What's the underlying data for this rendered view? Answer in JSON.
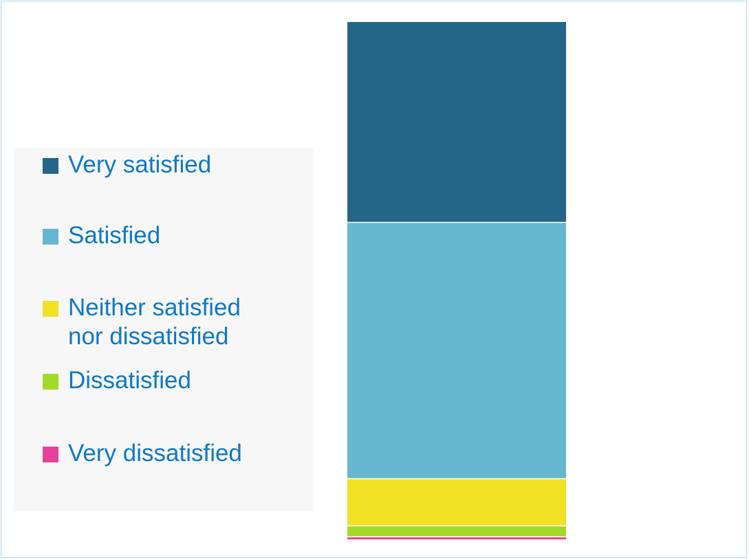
{
  "chart_data": {
    "type": "bar",
    "stacked": true,
    "orientation": "vertical",
    "categories": [
      ""
    ],
    "series": [
      {
        "name": "Very satisfied",
        "values": [
          38.3
        ],
        "color": "#256588"
      },
      {
        "name": "Satisfied",
        "values": [
          49.0
        ],
        "color": "#65b7cf"
      },
      {
        "name": "Neither satisfied nor dissatisfied",
        "values": [
          9.0
        ],
        "color": "#f0e123"
      },
      {
        "name": "Dissatisfied",
        "values": [
          2.1
        ],
        "color": "#a3da28"
      },
      {
        "name": "Very dissatisfied",
        "values": [
          0.5
        ],
        "color": "#e4429a"
      }
    ],
    "ylim": [
      0,
      100
    ],
    "grid": false,
    "legend_position": "left",
    "legend_order": [
      "Very satisfied",
      "Satisfied",
      "Neither satisfied nor dissatisfied",
      "Dissatisfied",
      "Very dissatisfied"
    ]
  },
  "legend": {
    "items": [
      {
        "label": "Very satisfied",
        "color": "#256588"
      },
      {
        "label": "Satisfied",
        "color": "#65b7cf"
      },
      {
        "label": "Neither satisfied nor dissatisfied",
        "color": "#f0e123"
      },
      {
        "label": "Dissatisfied",
        "color": "#a3da28"
      },
      {
        "label": "Very dissatisfied",
        "color": "#e4429a"
      }
    ]
  }
}
